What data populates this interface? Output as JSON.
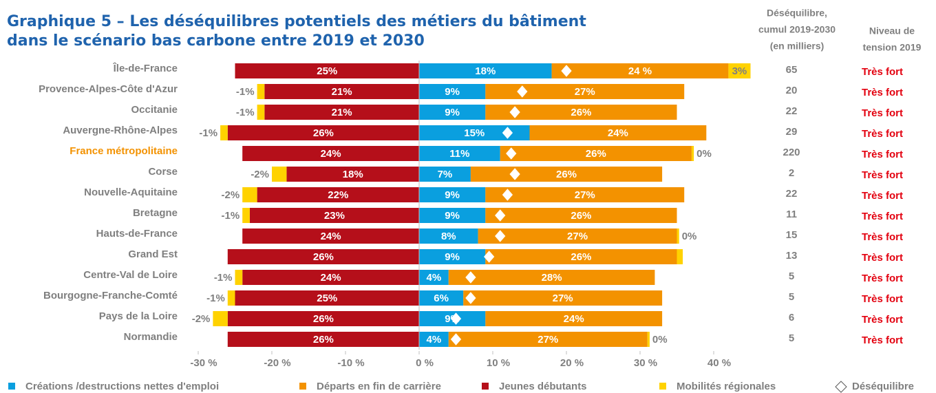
{
  "chart_data": {
    "type": "diverging-stacked-bar",
    "title": [
      "Graphique 5 – Les déséquilibres potentiels des métiers du bâtiment",
      "dans le scénario bas carbone entre 2019 et 2030"
    ],
    "imbalance_header": [
      "Déséquilibre,",
      "cumul 2019-2030",
      "(en milliers)"
    ],
    "tension_header": [
      "Niveau de",
      "tension 2019"
    ],
    "categories": [
      "Île-de-France",
      "Provence-Alpes-Côte d'Azur",
      "Occitanie",
      "Auvergne-Rhône-Alpes",
      "France métropolitaine",
      "Corse",
      "Nouvelle-Aquitaine",
      "Bretagne",
      "Hauts-de-France",
      "Grand Est",
      "Centre-Val de Loire",
      "Bourgogne-Franche-Comté",
      "Pays de la Loire",
      "Normandie"
    ],
    "series": [
      {
        "name": "Créations /destructions nettes d'emploi",
        "color": "#0a9fdf",
        "values": [
          18,
          9,
          9,
          15,
          11,
          7,
          9,
          9,
          8,
          9,
          4,
          6,
          9,
          4
        ],
        "value_labels": [
          "18%",
          "9%",
          "9%",
          "15%",
          "11%",
          "7%",
          "9%",
          "9%",
          "8%",
          "9%",
          "4%",
          "6%",
          "9%",
          "4%"
        ]
      },
      {
        "name": "Départs en fin de carrière",
        "color": "#f39200",
        "values": [
          24,
          27,
          26,
          24,
          26,
          26,
          27,
          26,
          27,
          26,
          28,
          27,
          24,
          27
        ],
        "value_labels": [
          "24 %",
          "27%",
          "26%",
          "24%",
          "26%",
          "26%",
          "27%",
          "26%",
          "27%",
          "26%",
          "28%",
          "27%",
          "24%",
          "27%"
        ]
      },
      {
        "name": "Jeunes débutants",
        "color": "#b50f1a",
        "values": [
          -25,
          -21,
          -21,
          -26,
          -24,
          -18,
          -22,
          -23,
          -24,
          -26,
          -24,
          -25,
          -26,
          -26
        ],
        "value_labels": [
          "25%",
          "21%",
          "21%",
          "26%",
          "24%",
          "18%",
          "22%",
          "23%",
          "24%",
          "26%",
          "24%",
          "25%",
          "26%",
          "26%"
        ]
      },
      {
        "name": "Mobilités régionales",
        "color": "#ffd200",
        "values": [
          3,
          -1,
          -1,
          -1,
          0.3,
          -2,
          -2,
          -1,
          0.3,
          0.8,
          -1,
          -1,
          -2,
          0.3
        ],
        "value_labels": [
          "3%",
          "-1%",
          "-1%",
          "-1%",
          "0%",
          "-2%",
          "-2%",
          "-1%",
          "0%",
          null,
          "-1%",
          "-1%",
          "-2%",
          "0%"
        ]
      }
    ],
    "balance": {
      "name": "Déséquilibre",
      "values": [
        20,
        14,
        13,
        12,
        12.5,
        13,
        12,
        11,
        11,
        9.5,
        7,
        7,
        5,
        5
      ]
    },
    "imbalance_thousands": [
      65,
      20,
      22,
      29,
      220,
      2,
      22,
      11,
      15,
      13,
      5,
      5,
      6,
      5
    ],
    "tension": [
      "Très fort",
      "Très fort",
      "Très fort",
      "Très fort",
      "Très fort",
      "Très fort",
      "Très fort",
      "Très fort",
      "Très fort",
      "Très fort",
      "Très fort",
      "Très fort",
      "Très fort",
      "Très fort"
    ],
    "xlim": [
      -30,
      45
    ],
    "xticks": [
      {
        "value": -30,
        "label": "-30 %"
      },
      {
        "value": -20,
        "label": "-20 %"
      },
      {
        "value": -10,
        "label": "-10 %"
      },
      {
        "value": 0,
        "label": "0 %"
      },
      {
        "value": 10,
        "label": "10 %"
      },
      {
        "value": 20,
        "label": "20 %"
      },
      {
        "value": 30,
        "label": "30 %"
      },
      {
        "value": 40,
        "label": "40 %"
      }
    ]
  }
}
